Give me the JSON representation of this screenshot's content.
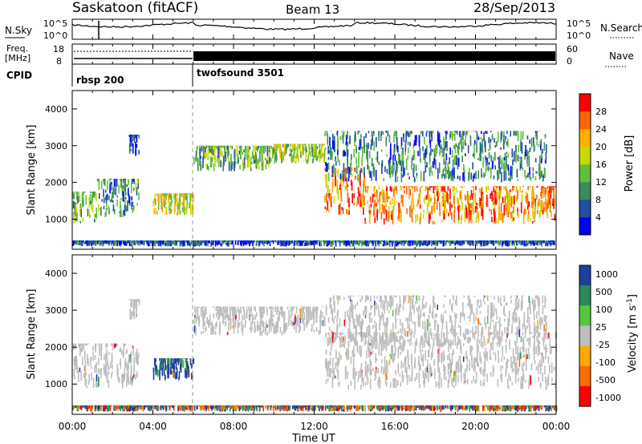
{
  "header": {
    "site": "Saskatoon (fitACF)",
    "beam": "Beam 13",
    "date": "28/Sep/2013"
  },
  "noise_panel": {
    "left_label": "N.Sky",
    "right_label": "N.Search",
    "left_ticks": [
      "10^5",
      "10^0"
    ],
    "right_ticks": [
      "10^5",
      "10^0"
    ]
  },
  "freq_panel": {
    "left_label_top": "Freq.",
    "left_label_bottom": "[MHz]",
    "right_label": "Nave",
    "left_ticks": [
      "18",
      "8"
    ],
    "right_ticks": [
      "60",
      "0"
    ]
  },
  "cpid": {
    "label": "CPID",
    "programs": [
      {
        "name": "rbsp 200",
        "start_hour": 0.0
      },
      {
        "name": "twofsound 3501",
        "start_hour": 6.0
      }
    ]
  },
  "time_axis": {
    "title": "Time UT",
    "ticks": [
      "00:00",
      "04:00",
      "08:00",
      "12:00",
      "16:00",
      "20:00",
      "00:00"
    ],
    "tick_hours": [
      0,
      4,
      8,
      12,
      16,
      20,
      24
    ]
  },
  "colors": {
    "ground_scatter": "#bebebe",
    "power_scale": [
      "#0000ff",
      "#1f4fa0",
      "#3a8c5a",
      "#5fbf3a",
      "#c8d800",
      "#ffb000",
      "#ff6400",
      "#ff0000"
    ],
    "velocity_scale": [
      "#1d3f9e",
      "#2c8a5a",
      "#55c838",
      "#bebebe",
      "#ffa800",
      "#ff6a00",
      "#ff0000"
    ]
  },
  "chart_data": [
    {
      "type": "heatmap",
      "title": "Power",
      "xlabel": "Time UT",
      "ylabel": "Slant Range [km]",
      "xlim": [
        0,
        24
      ],
      "ylim": [
        180,
        4500
      ],
      "yticks": [
        "1000",
        "2000",
        "3000",
        "4000"
      ],
      "ytick_values": [
        1000,
        2000,
        3000,
        4000
      ],
      "colorbar": {
        "label": "Power [dB]",
        "range": [
          0,
          32
        ],
        "tick_labels": [
          "4",
          "8",
          "12",
          "16",
          "20",
          "24",
          "28"
        ],
        "tick_values": [
          4,
          8,
          12,
          16,
          20,
          24,
          28
        ]
      },
      "regions": [
        {
          "t": [
            0.0,
            1.2
          ],
          "r": [
            880,
            1750
          ],
          "level": 12
        },
        {
          "t": [
            1.2,
            3.3
          ],
          "r": [
            1050,
            2100
          ],
          "level": 10
        },
        {
          "t": [
            2.8,
            3.3
          ],
          "r": [
            2700,
            3300
          ],
          "level": 5
        },
        {
          "t": [
            4.0,
            6.0
          ],
          "r": [
            1100,
            1700
          ],
          "level": 19
        },
        {
          "t": [
            6.0,
            10.0
          ],
          "r": [
            2300,
            3000
          ],
          "level": 13
        },
        {
          "t": [
            10.0,
            12.5
          ],
          "r": [
            2500,
            3050
          ],
          "level": 16
        },
        {
          "t": [
            12.5,
            14.5
          ],
          "r": [
            1100,
            2400
          ],
          "level": 25
        },
        {
          "t": [
            14.5,
            24.0
          ],
          "r": [
            850,
            1900
          ],
          "level": 24
        },
        {
          "t": [
            12.5,
            23.5
          ],
          "r": [
            2000,
            3400
          ],
          "level": 9
        },
        {
          "t": [
            0.0,
            24.0
          ],
          "r": [
            250,
            420
          ],
          "level": 6
        }
      ]
    },
    {
      "type": "heatmap",
      "title": "Velocity",
      "xlabel": "Time UT",
      "ylabel": "Slant Range [km]",
      "xlim": [
        0,
        24
      ],
      "ylim": [
        180,
        4500
      ],
      "yticks": [
        "1000",
        "2000",
        "3000",
        "4000"
      ],
      "ytick_values": [
        1000,
        2000,
        3000,
        4000
      ],
      "colorbar": {
        "label": "Velocity [m s^-1]",
        "range": [
          -1250,
          1250
        ],
        "tick_labels": [
          "1000",
          "500",
          "100",
          "25",
          "-25",
          "-100",
          "-500",
          "-1000"
        ]
      },
      "regions": [
        {
          "t": [
            0.0,
            3.3
          ],
          "r": [
            880,
            2100
          ],
          "kind": "ground"
        },
        {
          "t": [
            2.8,
            3.3
          ],
          "r": [
            2700,
            3300
          ],
          "kind": "ground"
        },
        {
          "t": [
            4.0,
            6.0
          ],
          "r": [
            1100,
            1700
          ],
          "kind": "ionospheric",
          "velocity": 700
        },
        {
          "t": [
            6.0,
            12.5
          ],
          "r": [
            2300,
            3100
          ],
          "kind": "ground"
        },
        {
          "t": [
            12.5,
            24.0
          ],
          "r": [
            850,
            2400
          ],
          "kind": "ground"
        },
        {
          "t": [
            12.5,
            23.5
          ],
          "r": [
            2000,
            3400
          ],
          "kind": "ground"
        },
        {
          "t": [
            0.0,
            24.0
          ],
          "r": [
            250,
            420
          ],
          "kind": "ionospheric",
          "velocity": 150
        }
      ]
    }
  ]
}
